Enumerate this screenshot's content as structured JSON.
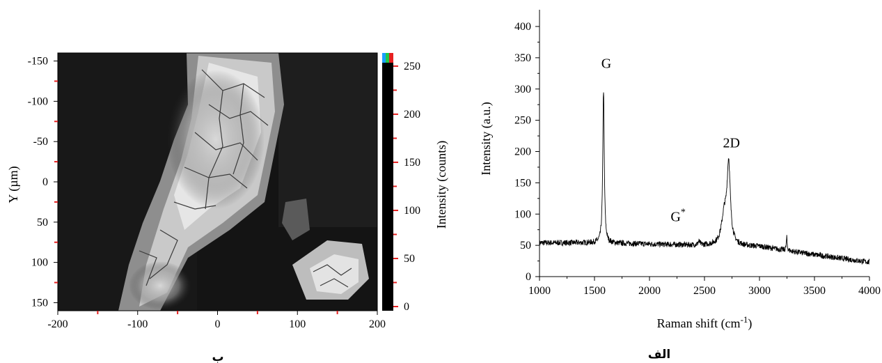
{
  "chart_data": [
    {
      "type": "heatmap",
      "caption": "ب",
      "xlabel": "",
      "ylabel": "Y (µm)",
      "xlim": [
        -200,
        200
      ],
      "ylim": [
        -160,
        160
      ],
      "y_inverted": true,
      "x_ticks": [
        "-200",
        "-100",
        "0",
        "100",
        "200"
      ],
      "x_tick_values": [
        -200,
        -100,
        0,
        100,
        200
      ],
      "y_ticks": [
        "-150",
        "-100",
        "-50",
        "0",
        "50",
        "100",
        "150"
      ],
      "y_tick_values": [
        -150,
        -100,
        -50,
        0,
        50,
        100,
        150
      ],
      "colorbar": {
        "label": "Intensity (counts)",
        "range": [
          0,
          255
        ],
        "ticks": [
          "250",
          "200",
          "150",
          "100",
          "50",
          "0"
        ],
        "tick_values": [
          250,
          200,
          150,
          100,
          50,
          0
        ],
        "colors": [
          "#1aa0ff",
          "#22c84a",
          "#e62020"
        ]
      }
    },
    {
      "type": "line",
      "caption": "الف",
      "xlabel_main": "Raman shift (cm",
      "xlabel_sup": "-1",
      "xlabel_end": ")",
      "ylabel": "Intensity (a.u.)",
      "xlim": [
        1000,
        4000
      ],
      "ylim": [
        0,
        420
      ],
      "x_ticks": [
        "1000",
        "1500",
        "2000",
        "2500",
        "3000",
        "3500",
        "4000"
      ],
      "x_tick_values": [
        1000,
        1500,
        2000,
        2500,
        3000,
        3500,
        4000
      ],
      "y_ticks": [
        "0",
        "50",
        "100",
        "150",
        "200",
        "250",
        "300",
        "350",
        "400"
      ],
      "y_tick_values": [
        0,
        50,
        100,
        150,
        200,
        250,
        300,
        350,
        400
      ],
      "baseline": {
        "x": [
          1000,
          1500,
          2000,
          2400,
          3000,
          3500,
          4000
        ],
        "y": [
          54,
          54,
          52,
          50,
          48,
          35,
          23
        ]
      },
      "peaks": [
        {
          "label": "G",
          "sup": "",
          "x": 1582,
          "height": 298,
          "width": 8
        },
        {
          "label": "G",
          "sup": "*",
          "x": 2450,
          "height": 55,
          "width": 10
        },
        {
          "label": "2D",
          "sup": "",
          "x": 2720,
          "height": 173,
          "width": 18
        },
        {
          "label": "",
          "sup": "",
          "x": 3248,
          "height": 62,
          "width": 5
        }
      ],
      "shoulder": {
        "x": 2680,
        "height": 95,
        "width": 30
      }
    }
  ]
}
